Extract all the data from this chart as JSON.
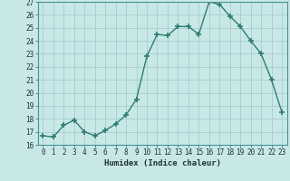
{
  "x": [
    0,
    1,
    2,
    3,
    4,
    5,
    6,
    7,
    8,
    9,
    10,
    11,
    12,
    13,
    14,
    15,
    16,
    17,
    18,
    19,
    20,
    21,
    22,
    23
  ],
  "y": [
    16.7,
    16.6,
    17.5,
    17.9,
    17.0,
    16.7,
    17.1,
    17.6,
    18.3,
    19.5,
    22.8,
    24.5,
    24.4,
    25.1,
    25.1,
    24.5,
    27.0,
    26.8,
    25.9,
    25.1,
    24.0,
    23.0,
    21.0,
    18.5
  ],
  "xlabel": "Humidex (Indice chaleur)",
  "xlim": [
    -0.5,
    23.5
  ],
  "ylim": [
    16,
    27
  ],
  "yticks": [
    16,
    17,
    18,
    19,
    20,
    21,
    22,
    23,
    24,
    25,
    26,
    27
  ],
  "xticks": [
    0,
    1,
    2,
    3,
    4,
    5,
    6,
    7,
    8,
    9,
    10,
    11,
    12,
    13,
    14,
    15,
    16,
    17,
    18,
    19,
    20,
    21,
    22,
    23
  ],
  "line_color": "#2e7d6e",
  "marker": "+",
  "marker_size": 4,
  "marker_lw": 1.2,
  "line_width": 1.0,
  "bg_color": "#c8e8e8",
  "grid_color": "#a8cccc",
  "spine_color": "#4a9090",
  "tick_label_color": "#203030",
  "xlabel_color": "#203030",
  "tick_fontsize": 5.5,
  "xlabel_fontsize": 6.5
}
